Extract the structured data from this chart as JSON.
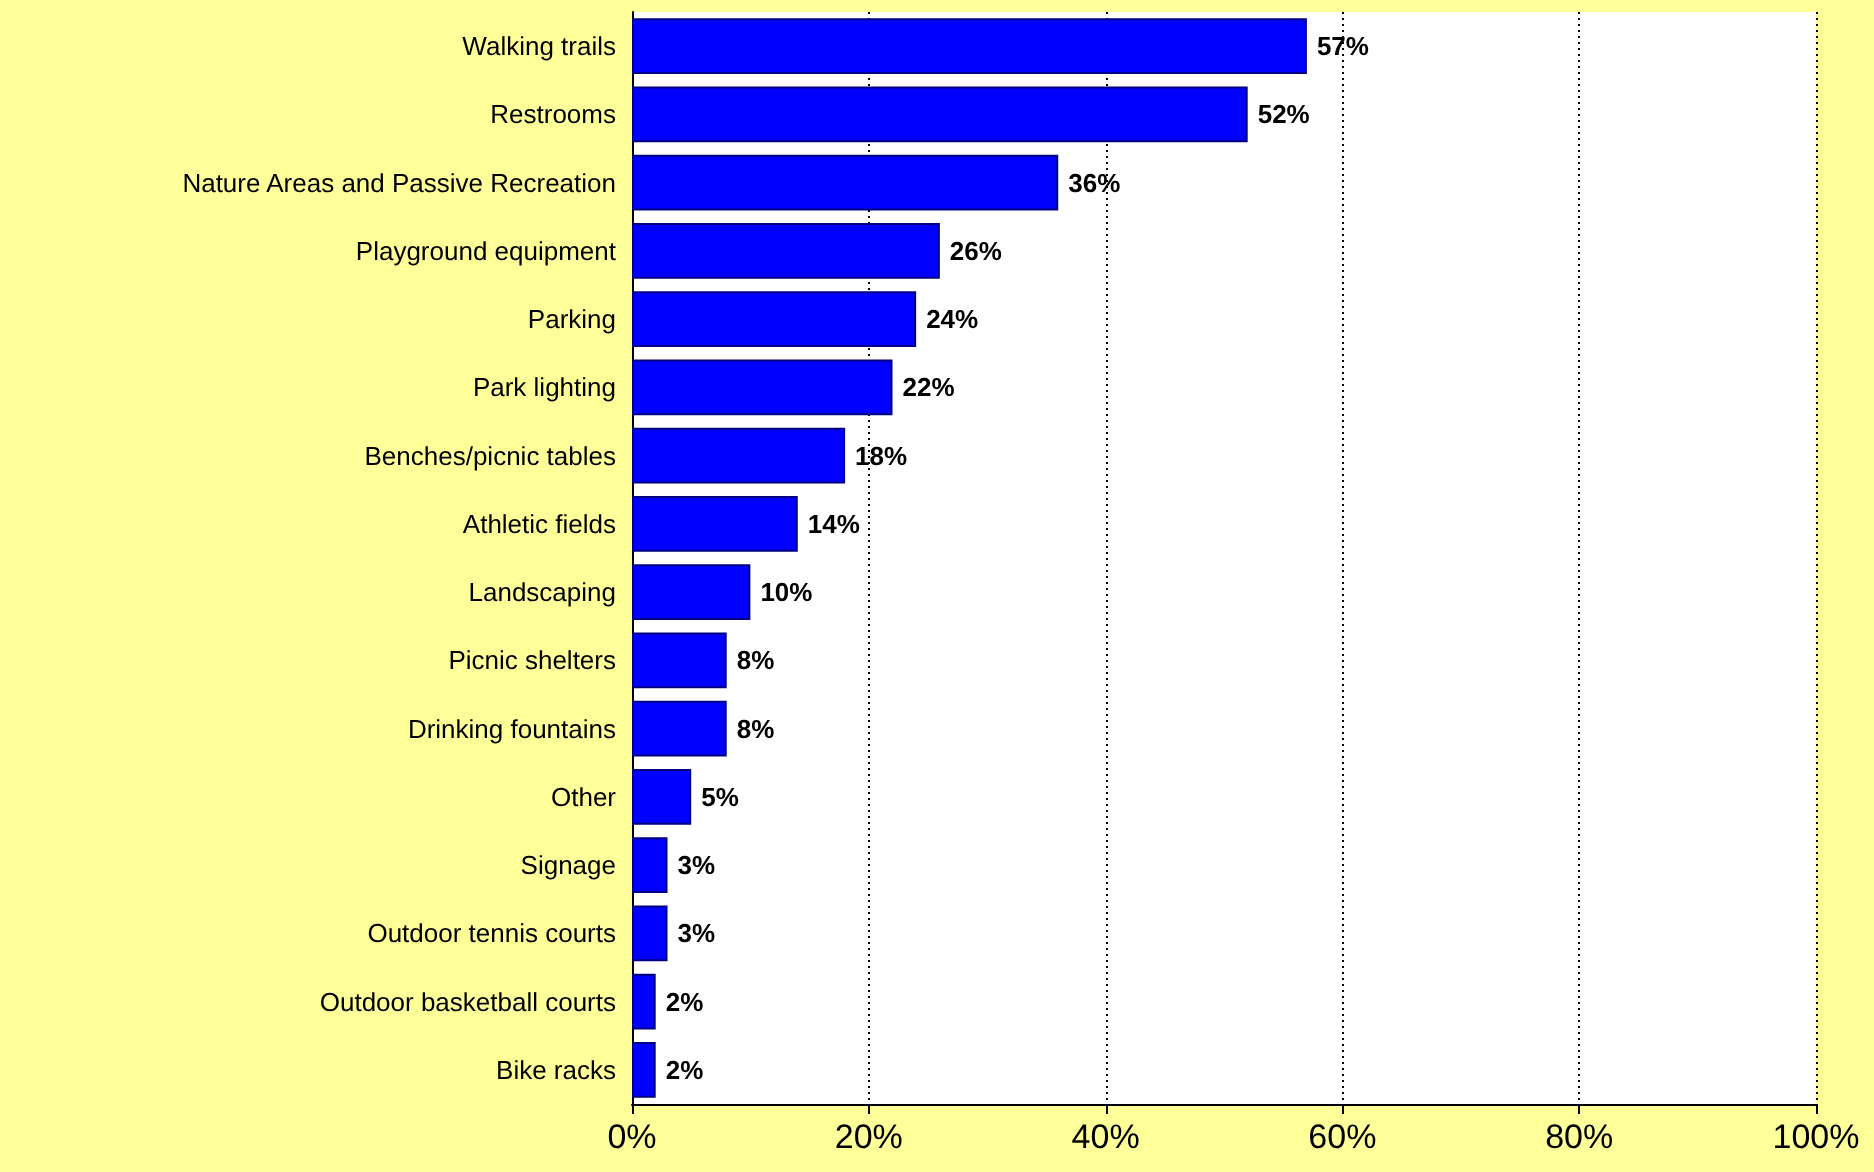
{
  "chart_data": {
    "type": "bar",
    "orientation": "horizontal",
    "categories": [
      "Walking trails",
      "Restrooms",
      "Nature Areas and Passive Recreation",
      "Playground equipment",
      "Parking",
      "Park lighting",
      "Benches/picnic tables",
      "Athletic fields",
      "Landscaping",
      "Picnic shelters",
      "Drinking fountains",
      "Other",
      "Signage",
      "Outdoor tennis courts",
      "Outdoor basketball courts",
      "Bike racks"
    ],
    "values": [
      57,
      52,
      36,
      26,
      24,
      22,
      18,
      14,
      10,
      8,
      8,
      5,
      3,
      3,
      2,
      2
    ],
    "value_labels": [
      "57%",
      "52%",
      "36%",
      "26%",
      "24%",
      "22%",
      "18%",
      "14%",
      "10%",
      "8%",
      "8%",
      "5%",
      "3%",
      "3%",
      "2%",
      "2%"
    ],
    "color": "#0000ff",
    "xlim": [
      0,
      100
    ],
    "xticks": [
      {
        "value": 0,
        "label": "0%"
      },
      {
        "value": 20,
        "label": "20%"
      },
      {
        "value": 40,
        "label": "40%"
      },
      {
        "value": 60,
        "label": "60%"
      },
      {
        "value": 80,
        "label": "80%"
      },
      {
        "value": 100,
        "label": "100%"
      }
    ],
    "grid": "x"
  }
}
